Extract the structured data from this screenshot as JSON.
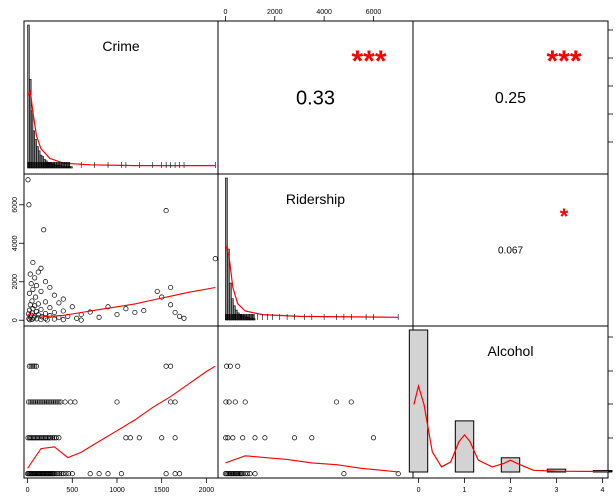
{
  "chart_data": {
    "type": "scatter",
    "kind": "correlation-matrix",
    "variables": [
      "Crime",
      "Ridership",
      "Alcohol"
    ],
    "correlations": [
      {
        "pair": [
          "Crime",
          "Ridership"
        ],
        "value": "0.33",
        "stars": "***"
      },
      {
        "pair": [
          "Crime",
          "Alcohol"
        ],
        "value": "0.25",
        "stars": "***"
      },
      {
        "pair": [
          "Ridership",
          "Alcohol"
        ],
        "value": "0.067",
        "stars": "*"
      }
    ],
    "axes": {
      "crime_ticks": [
        "0",
        "500",
        "1000",
        "1500",
        "2000"
      ],
      "crime_range": [
        -40,
        2130
      ],
      "ridership_ticks": [
        "0",
        "2000",
        "4000",
        "6000"
      ],
      "ridership_range": [
        -300,
        7600
      ],
      "alcohol_ticks": [
        "0",
        "1",
        "2",
        "3",
        "4"
      ],
      "alcohol_range": [
        -0.12,
        4.12
      ]
    },
    "histograms": {
      "Crime": {
        "bins": [
          0,
          20,
          40,
          60,
          80,
          100,
          120,
          140,
          160,
          180,
          200,
          220,
          240,
          260,
          280,
          300,
          320,
          340,
          360,
          380,
          400,
          420,
          440,
          460,
          480,
          500
        ],
        "counts": [
          100,
          62,
          40,
          26,
          20,
          15,
          12,
          9,
          8,
          6,
          5,
          4,
          4,
          3,
          3,
          2,
          2,
          2,
          2,
          1,
          1,
          1,
          1,
          1,
          1
        ]
      },
      "Ridership": {
        "bins": [
          0,
          80,
          160,
          240,
          320,
          400,
          480,
          560,
          640,
          720,
          800,
          880,
          960,
          1040,
          1120,
          1200
        ],
        "counts": [
          100,
          50,
          26,
          15,
          10,
          7,
          5,
          4,
          3,
          3,
          2,
          2,
          1,
          1,
          1
        ]
      },
      "Alcohol": {
        "bins": [
          -0.2,
          0.2,
          0.8,
          1.2,
          1.8,
          2.2,
          2.8,
          3.2,
          3.8,
          4.2
        ],
        "counts": [
          100,
          0,
          36,
          0,
          10,
          0,
          2,
          0,
          1
        ]
      }
    },
    "densities": {
      "Crime": [
        [
          0,
          45
        ],
        [
          30,
          48
        ],
        [
          60,
          35
        ],
        [
          100,
          20
        ],
        [
          150,
          12
        ],
        [
          250,
          6
        ],
        [
          400,
          3
        ],
        [
          700,
          2
        ],
        [
          1200,
          1.5
        ],
        [
          2100,
          1.5
        ]
      ],
      "Ridership": [
        [
          0,
          42
        ],
        [
          150,
          35
        ],
        [
          300,
          18
        ],
        [
          500,
          9
        ],
        [
          800,
          5
        ],
        [
          1500,
          3
        ],
        [
          3000,
          2
        ],
        [
          7000,
          1.5
        ]
      ],
      "Alcohol": [
        [
          -0.1,
          40
        ],
        [
          0,
          51
        ],
        [
          0.12,
          40
        ],
        [
          0.3,
          12
        ],
        [
          0.5,
          3
        ],
        [
          0.7,
          6
        ],
        [
          0.88,
          18
        ],
        [
          1,
          22
        ],
        [
          1.12,
          18
        ],
        [
          1.3,
          7
        ],
        [
          1.6,
          3
        ],
        [
          1.85,
          5
        ],
        [
          2,
          7
        ],
        [
          2.15,
          5
        ],
        [
          2.5,
          1
        ],
        [
          3,
          0.5
        ],
        [
          4,
          0.3
        ]
      ]
    },
    "scatter_crime_ridership": [
      [
        5,
        7300
      ],
      [
        15,
        6000
      ],
      [
        180,
        4700
      ],
      [
        1550,
        5700
      ],
      [
        2100,
        3200
      ],
      [
        60,
        3000
      ],
      [
        150,
        2700
      ],
      [
        120,
        2500
      ],
      [
        30,
        2400
      ],
      [
        80,
        2200
      ],
      [
        200,
        2000
      ],
      [
        40,
        1900
      ],
      [
        100,
        1800
      ],
      [
        250,
        1700
      ],
      [
        60,
        1600
      ],
      [
        150,
        1500
      ],
      [
        20,
        1400
      ],
      [
        300,
        1300
      ],
      [
        90,
        1200
      ],
      [
        400,
        1100
      ],
      [
        50,
        1000
      ],
      [
        200,
        950
      ],
      [
        350,
        900
      ],
      [
        120,
        850
      ],
      [
        30,
        800
      ],
      [
        80,
        750
      ],
      [
        500,
        700
      ],
      [
        250,
        650
      ],
      [
        60,
        600
      ],
      [
        150,
        560
      ],
      [
        20,
        520
      ],
      [
        400,
        480
      ],
      [
        100,
        450
      ],
      [
        700,
        420
      ],
      [
        300,
        400
      ],
      [
        50,
        380
      ],
      [
        200,
        350
      ],
      [
        10,
        330
      ],
      [
        600,
        300
      ],
      [
        120,
        280
      ],
      [
        40,
        260
      ],
      [
        250,
        240
      ],
      [
        80,
        220
      ],
      [
        450,
        200
      ],
      [
        160,
        180
      ],
      [
        30,
        160
      ],
      [
        350,
        140
      ],
      [
        70,
        120
      ],
      [
        550,
        100
      ],
      [
        200,
        90
      ],
      [
        15,
        80
      ],
      [
        100,
        70
      ],
      [
        300,
        60
      ],
      [
        50,
        50
      ],
      [
        150,
        40
      ],
      [
        400,
        30
      ],
      [
        25,
        20
      ],
      [
        220,
        10
      ],
      [
        600,
        5
      ],
      [
        800,
        150
      ],
      [
        900,
        700
      ],
      [
        1100,
        600
      ],
      [
        1300,
        500
      ],
      [
        1500,
        1200
      ],
      [
        1600,
        1700
      ],
      [
        1650,
        400
      ],
      [
        1700,
        200
      ],
      [
        1750,
        100
      ],
      [
        1000,
        300
      ],
      [
        1200,
        400
      ],
      [
        1600,
        800
      ],
      [
        1450,
        1500
      ]
    ],
    "loess_crime_ridership": [
      [
        0,
        300
      ],
      [
        200,
        200
      ],
      [
        400,
        250
      ],
      [
        600,
        400
      ],
      [
        800,
        550
      ],
      [
        1000,
        700
      ],
      [
        1200,
        850
      ],
      [
        1400,
        1050
      ],
      [
        1600,
        1250
      ],
      [
        1800,
        1450
      ],
      [
        2100,
        1700
      ]
    ],
    "scatter_crime_alcohol": [
      [
        20,
        3
      ],
      [
        40,
        3
      ],
      [
        60,
        3
      ],
      [
        80,
        3
      ],
      [
        100,
        3
      ],
      [
        1550,
        3
      ],
      [
        1600,
        3
      ],
      [
        10,
        2
      ],
      [
        30,
        2
      ],
      [
        50,
        2
      ],
      [
        70,
        2
      ],
      [
        90,
        2
      ],
      [
        110,
        2
      ],
      [
        130,
        2
      ],
      [
        150,
        2
      ],
      [
        170,
        2
      ],
      [
        190,
        2
      ],
      [
        210,
        2
      ],
      [
        230,
        2
      ],
      [
        250,
        2
      ],
      [
        270,
        2
      ],
      [
        290,
        2
      ],
      [
        310,
        2
      ],
      [
        330,
        2
      ],
      [
        350,
        2
      ],
      [
        370,
        2
      ],
      [
        420,
        2
      ],
      [
        480,
        2
      ],
      [
        530,
        2
      ],
      [
        1000,
        2
      ],
      [
        1600,
        2
      ],
      [
        1650,
        2
      ],
      [
        5,
        1
      ],
      [
        20,
        1
      ],
      [
        35,
        1
      ],
      [
        50,
        1
      ],
      [
        65,
        1
      ],
      [
        80,
        1
      ],
      [
        95,
        1
      ],
      [
        110,
        1
      ],
      [
        125,
        1
      ],
      [
        140,
        1
      ],
      [
        155,
        1
      ],
      [
        170,
        1
      ],
      [
        185,
        1
      ],
      [
        200,
        1
      ],
      [
        215,
        1
      ],
      [
        230,
        1
      ],
      [
        245,
        1
      ],
      [
        260,
        1
      ],
      [
        280,
        1
      ],
      [
        300,
        1
      ],
      [
        320,
        1
      ],
      [
        350,
        1
      ],
      [
        1100,
        1
      ],
      [
        1150,
        1
      ],
      [
        1250,
        1
      ],
      [
        1500,
        1
      ],
      [
        1650,
        1
      ],
      [
        0,
        0
      ],
      [
        10,
        0
      ],
      [
        20,
        0
      ],
      [
        30,
        0
      ],
      [
        40,
        0
      ],
      [
        50,
        0
      ],
      [
        60,
        0
      ],
      [
        70,
        0
      ],
      [
        80,
        0
      ],
      [
        90,
        0
      ],
      [
        100,
        0
      ],
      [
        110,
        0
      ],
      [
        120,
        0
      ],
      [
        130,
        0
      ],
      [
        140,
        0
      ],
      [
        150,
        0
      ],
      [
        160,
        0
      ],
      [
        170,
        0
      ],
      [
        180,
        0
      ],
      [
        190,
        0
      ],
      [
        200,
        0
      ],
      [
        210,
        0
      ],
      [
        220,
        0
      ],
      [
        230,
        0
      ],
      [
        240,
        0
      ],
      [
        250,
        0
      ],
      [
        260,
        0
      ],
      [
        270,
        0
      ],
      [
        280,
        0
      ],
      [
        290,
        0
      ],
      [
        300,
        0
      ],
      [
        320,
        0
      ],
      [
        340,
        0
      ],
      [
        360,
        0
      ],
      [
        380,
        0
      ],
      [
        400,
        0
      ],
      [
        430,
        0
      ],
      [
        460,
        0
      ],
      [
        500,
        0
      ],
      [
        700,
        0
      ],
      [
        800,
        0
      ],
      [
        900,
        0
      ],
      [
        1050,
        0
      ],
      [
        1550,
        0
      ],
      [
        1650,
        0
      ],
      [
        1700,
        0
      ]
    ],
    "loess_crime_alcohol": [
      [
        0,
        0.15
      ],
      [
        150,
        0.7
      ],
      [
        300,
        0.75
      ],
      [
        450,
        0.45
      ],
      [
        600,
        0.6
      ],
      [
        800,
        0.9
      ],
      [
        1000,
        1.2
      ],
      [
        1200,
        1.5
      ],
      [
        1400,
        1.85
      ],
      [
        1600,
        2.15
      ],
      [
        1800,
        2.5
      ],
      [
        2000,
        2.85
      ],
      [
        2100,
        3.0
      ]
    ],
    "scatter_ridership_alcohol": [
      [
        50,
        3
      ],
      [
        200,
        3
      ],
      [
        500,
        3
      ],
      [
        20,
        2
      ],
      [
        150,
        2
      ],
      [
        400,
        2
      ],
      [
        800,
        2
      ],
      [
        4500,
        2
      ],
      [
        5100,
        2
      ],
      [
        10,
        1
      ],
      [
        100,
        1
      ],
      [
        300,
        1
      ],
      [
        700,
        1
      ],
      [
        1200,
        1
      ],
      [
        1600,
        1
      ],
      [
        2800,
        1
      ],
      [
        3500,
        1
      ],
      [
        6000,
        1
      ],
      [
        0,
        0
      ],
      [
        50,
        0
      ],
      [
        100,
        0
      ],
      [
        150,
        0
      ],
      [
        200,
        0
      ],
      [
        250,
        0
      ],
      [
        300,
        0
      ],
      [
        350,
        0
      ],
      [
        400,
        0
      ],
      [
        450,
        0
      ],
      [
        500,
        0
      ],
      [
        550,
        0
      ],
      [
        600,
        0
      ],
      [
        650,
        0
      ],
      [
        700,
        0
      ],
      [
        800,
        0
      ],
      [
        900,
        0
      ],
      [
        1000,
        0
      ],
      [
        1200,
        0
      ],
      [
        4800,
        0
      ],
      [
        7000,
        0
      ]
    ],
    "loess_ridership_alcohol": [
      [
        0,
        0.3
      ],
      [
        800,
        0.5
      ],
      [
        1600,
        0.45
      ],
      [
        2500,
        0.4
      ],
      [
        3500,
        0.3
      ],
      [
        4500,
        0.25
      ],
      [
        5500,
        0.15
      ],
      [
        7000,
        0.05
      ]
    ]
  }
}
